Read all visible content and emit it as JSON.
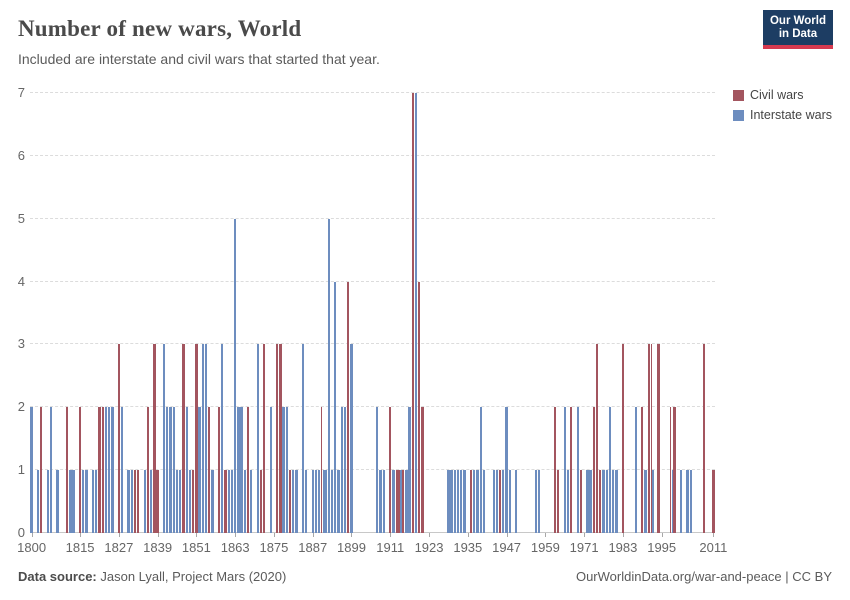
{
  "header": {
    "title": "Number of new wars, World",
    "subtitle": "Included are interstate and civil wars that started that year."
  },
  "logo": {
    "line1": "Our World",
    "line2": "in Data"
  },
  "legend": [
    {
      "label": "Civil wars",
      "color": "#a3555f"
    },
    {
      "label": "Interstate wars",
      "color": "#6d8dbf"
    }
  ],
  "footer": {
    "source_label": "Data source:",
    "source_value": " Jason Lyall, Project Mars (2020)",
    "credit": "OurWorldinData.org/war-and-peace | CC BY"
  },
  "chart_data": {
    "type": "bar",
    "title": "Number of new wars, World",
    "xlabel": "",
    "ylabel": "",
    "x_start": 1800,
    "x_end": 2011,
    "ylim": [
      0,
      7
    ],
    "y_ticks": [
      0,
      1,
      2,
      3,
      4,
      5,
      6,
      7
    ],
    "x_tick_labels": [
      1800,
      1815,
      1827,
      1839,
      1851,
      1863,
      1875,
      1887,
      1899,
      1911,
      1923,
      1935,
      1947,
      1959,
      1971,
      1983,
      1995,
      2011
    ],
    "grid": "horizontal-dashed",
    "legend_position": "right",
    "series": [
      {
        "name": "Civil wars",
        "color": "#a3555f",
        "points": {
          "1803": 2,
          "1811": 2,
          "1815": 2,
          "1821": 2,
          "1822": 2,
          "1827": 3,
          "1832": 1,
          "1833": 1,
          "1836": 2,
          "1838": 3,
          "1839": 1,
          "1847": 3,
          "1850": 1,
          "1851": 3,
          "1855": 2,
          "1858": 2,
          "1860": 1,
          "1867": 2,
          "1871": 1,
          "1872": 3,
          "1876": 3,
          "1877": 3,
          "1880": 1,
          "1890": 2,
          "1898": 4,
          "1911": 2,
          "1913": 1,
          "1914": 1,
          "1915": 1,
          "1918": 7,
          "1920": 4,
          "1921": 2,
          "1936": 1,
          "1945": 1,
          "1962": 2,
          "1963": 1,
          "1967": 2,
          "1970": 1,
          "1974": 2,
          "1975": 3,
          "1976": 1,
          "1983": 3,
          "1989": 2,
          "1991": 3,
          "1992": 3,
          "1994": 3,
          "1998": 2,
          "1999": 2,
          "2008": 3,
          "2011": 1
        }
      },
      {
        "name": "Interstate wars",
        "color": "#6d8dbf",
        "points": {
          "1800": 2,
          "1802": 1,
          "1805": 1,
          "1806": 2,
          "1808": 1,
          "1812": 1,
          "1813": 1,
          "1816": 1,
          "1817": 1,
          "1819": 1,
          "1820": 1,
          "1823": 2,
          "1824": 2,
          "1825": 2,
          "1828": 2,
          "1830": 1,
          "1831": 1,
          "1835": 1,
          "1837": 1,
          "1841": 3,
          "1842": 2,
          "1843": 2,
          "1844": 2,
          "1845": 1,
          "1846": 1,
          "1848": 2,
          "1849": 1,
          "1852": 2,
          "1853": 3,
          "1854": 3,
          "1856": 1,
          "1859": 3,
          "1861": 1,
          "1862": 1,
          "1863": 5,
          "1864": 2,
          "1865": 2,
          "1866": 1,
          "1868": 1,
          "1870": 3,
          "1874": 2,
          "1878": 2,
          "1879": 2,
          "1881": 1,
          "1882": 1,
          "1884": 3,
          "1885": 1,
          "1887": 1,
          "1888": 1,
          "1889": 1,
          "1890": 1,
          "1891": 1,
          "1892": 5,
          "1893": 1,
          "1894": 4,
          "1895": 1,
          "1896": 2,
          "1897": 2,
          "1899": 3,
          "1907": 2,
          "1908": 1,
          "1909": 1,
          "1912": 1,
          "1914": 1,
          "1916": 1,
          "1917": 2,
          "1919": 7,
          "1929": 1,
          "1930": 1,
          "1931": 1,
          "1932": 1,
          "1933": 1,
          "1934": 1,
          "1937": 1,
          "1938": 1,
          "1939": 2,
          "1940": 1,
          "1943": 1,
          "1944": 1,
          "1946": 1,
          "1947": 2,
          "1948": 1,
          "1950": 1,
          "1956": 1,
          "1957": 1,
          "1965": 2,
          "1966": 1,
          "1969": 2,
          "1972": 1,
          "1973": 1,
          "1977": 1,
          "1978": 1,
          "1979": 2,
          "1980": 1,
          "1981": 1,
          "1987": 2,
          "1990": 1,
          "1992": 1,
          "1998": 1,
          "2001": 1,
          "2003": 1,
          "2004": 1
        }
      }
    ]
  }
}
